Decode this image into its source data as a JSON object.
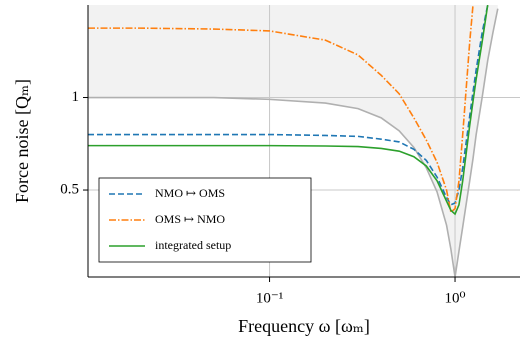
{
  "chart_data": {
    "type": "line",
    "x_label": "Frequency ω [ωₘ]",
    "y_label": "Force noise [Qₘ]",
    "x": [
      0.0105,
      0.02,
      0.05,
      0.1,
      0.2,
      0.3,
      0.4,
      0.5,
      0.6,
      0.7,
      0.8,
      0.9,
      0.95,
      1.0,
      1.05,
      1.1,
      1.2,
      1.25,
      1.3,
      1.4,
      1.5,
      1.6,
      1.7
    ],
    "series": [
      {
        "color": "#b0b0b0",
        "fill_above": "#f2f2f2",
        "values": [
          1.0,
          1.0,
          1.0,
          0.99,
          0.97,
          0.94,
          0.89,
          0.82,
          0.73,
          0.62,
          0.49,
          0.31,
          0.18,
          0.03,
          0.17,
          0.3,
          0.55,
          0.67,
          0.8,
          1.0,
          1.2,
          1.35,
          1.48
        ]
      },
      {
        "name": "NMO ↦ OMS",
        "color": "#1f77b4",
        "dash": "6,3",
        "values": [
          0.8,
          0.8,
          0.8,
          0.8,
          0.795,
          0.79,
          0.775,
          0.76,
          0.72,
          0.66,
          0.57,
          0.46,
          0.42,
          0.43,
          0.5,
          0.62,
          0.9,
          1.03,
          1.15,
          1.35,
          1.5,
          null,
          null
        ]
      },
      {
        "name": "OMS ↦ NMO",
        "color": "#ff7f0e",
        "dash": "7,2,1.5,2",
        "values": [
          1.375,
          1.375,
          1.37,
          1.36,
          1.31,
          1.23,
          1.12,
          1.02,
          0.89,
          0.77,
          0.65,
          0.5,
          0.38,
          0.4,
          0.55,
          0.8,
          1.3,
          1.5,
          null,
          null,
          null,
          null,
          null
        ]
      },
      {
        "name": "integrated setup",
        "color": "#2ca02c",
        "values": [
          0.74,
          0.74,
          0.74,
          0.74,
          0.738,
          0.735,
          0.725,
          0.71,
          0.68,
          0.63,
          0.55,
          0.44,
          0.39,
          0.37,
          0.42,
          0.55,
          0.85,
          0.98,
          1.1,
          1.3,
          1.5,
          null,
          null
        ]
      }
    ],
    "xscale": "log",
    "xlim": [
      0.0105,
      2.24
    ],
    "xticks": [
      {
        "value": 0.1,
        "label": "10⁻¹"
      },
      {
        "value": 1,
        "label": "10⁰"
      }
    ],
    "ylim": [
      0.03,
      1.5
    ],
    "yticks": [
      0.5,
      1
    ],
    "grid": true,
    "legend": "lower left"
  }
}
